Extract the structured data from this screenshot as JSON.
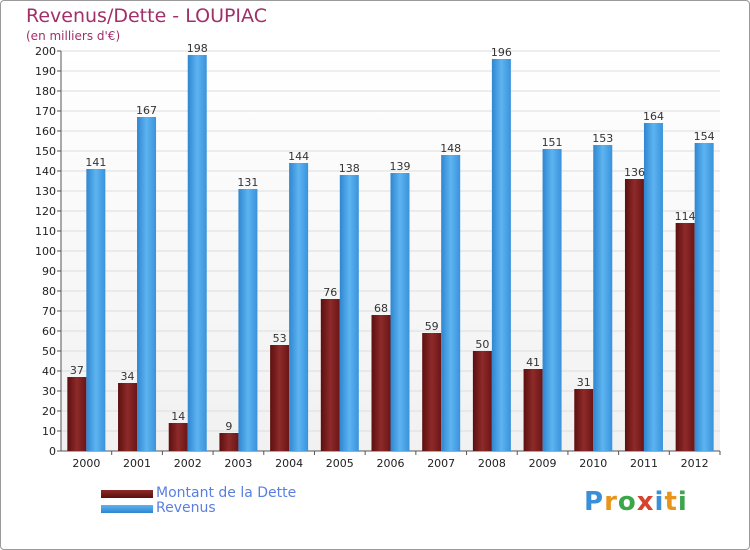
{
  "chart_data": {
    "type": "bar",
    "title": "Revenus/Dette - LOUPIAC",
    "subtitle": "(en milliers d'€)",
    "categories": [
      "2000",
      "2001",
      "2002",
      "2003",
      "2004",
      "2005",
      "2006",
      "2007",
      "2008",
      "2009",
      "2010",
      "2011",
      "2012"
    ],
    "series": [
      {
        "name": "Montant de la Dette",
        "values": [
          37,
          34,
          14,
          9,
          53,
          76,
          68,
          59,
          50,
          41,
          31,
          136,
          114
        ],
        "color": "#7a1f1f"
      },
      {
        "name": "Revenus",
        "values": [
          141,
          167,
          198,
          131,
          144,
          138,
          139,
          148,
          196,
          151,
          153,
          164,
          154
        ],
        "color": "#3d9ae4"
      }
    ],
    "ylim": [
      0,
      200
    ],
    "yticks": [
      0,
      10,
      20,
      30,
      40,
      50,
      60,
      70,
      80,
      90,
      100,
      110,
      120,
      130,
      140,
      150,
      160,
      170,
      180,
      190,
      200
    ],
    "grid": true,
    "legend": "bottom-left"
  },
  "brand": {
    "letters": [
      "P",
      "r",
      "o",
      "x",
      "i",
      "t",
      "i"
    ],
    "colors": [
      "#3a8fd8",
      "#e8951c",
      "#3ba64a",
      "#d8422c",
      "#3a8fd8",
      "#e8951c",
      "#3ba64a"
    ]
  }
}
